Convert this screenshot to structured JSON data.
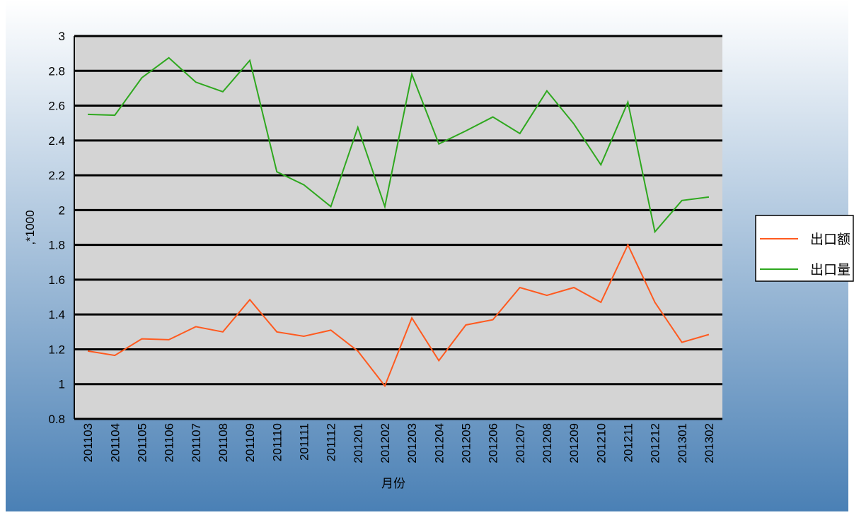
{
  "chart_data": {
    "type": "line",
    "x_label": "月份",
    "y_label": ",*1000",
    "categories": [
      "201103",
      "201104",
      "201105",
      "201106",
      "201107",
      "201108",
      "201109",
      "201110",
      "201111",
      "201112",
      "201201",
      "201202",
      "201203",
      "201204",
      "201205",
      "201206",
      "201207",
      "201208",
      "201209",
      "201210",
      "201211",
      "201212",
      "201301",
      "201302"
    ],
    "series": [
      {
        "name": "出口额",
        "color": "#ff5a1f",
        "values": [
          1.19,
          1.165,
          1.26,
          1.255,
          1.33,
          1.3,
          1.485,
          1.3,
          1.275,
          1.31,
          1.19,
          0.99,
          1.38,
          1.135,
          1.34,
          1.37,
          1.555,
          1.51,
          1.555,
          1.47,
          1.8,
          1.47,
          1.24,
          1.285
        ]
      },
      {
        "name": "出口量",
        "color": "#2ea81e",
        "values": [
          2.55,
          2.545,
          2.76,
          2.875,
          2.735,
          2.68,
          2.86,
          2.22,
          2.145,
          2.02,
          2.475,
          2.02,
          2.78,
          2.38,
          2.455,
          2.535,
          2.44,
          2.685,
          2.495,
          2.26,
          2.62,
          1.875,
          2.055,
          2.075
        ]
      }
    ],
    "ylim": [
      0.8,
      3
    ],
    "yticks": [
      0.8,
      1,
      1.2,
      1.4,
      1.6,
      1.8,
      2,
      2.2,
      2.4,
      2.6,
      2.8,
      3
    ],
    "grid": true,
    "legend": "right"
  }
}
